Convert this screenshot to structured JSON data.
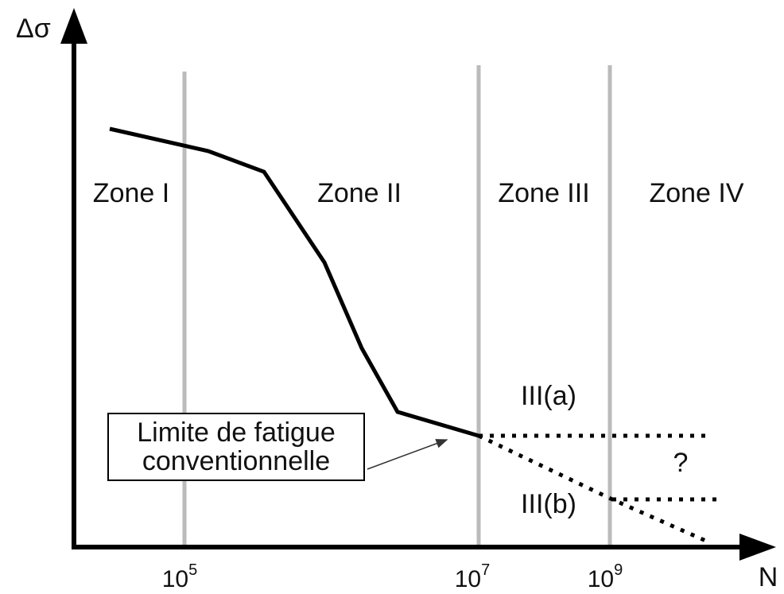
{
  "axes": {
    "y_label": "Δσ",
    "x_label": "N",
    "x_ticks": [
      {
        "base": "10",
        "exponent": "5"
      },
      {
        "base": "10",
        "exponent": "7"
      },
      {
        "base": "10",
        "exponent": "9"
      }
    ]
  },
  "zones": [
    "Zone I",
    "Zone II",
    "Zone III",
    "Zone IV"
  ],
  "branches": {
    "upper": "III(a)",
    "lower": "III(b)",
    "unknown": "?"
  },
  "annotation": {
    "lines": [
      "Limite de fatigue",
      "conventionnelle"
    ]
  }
}
